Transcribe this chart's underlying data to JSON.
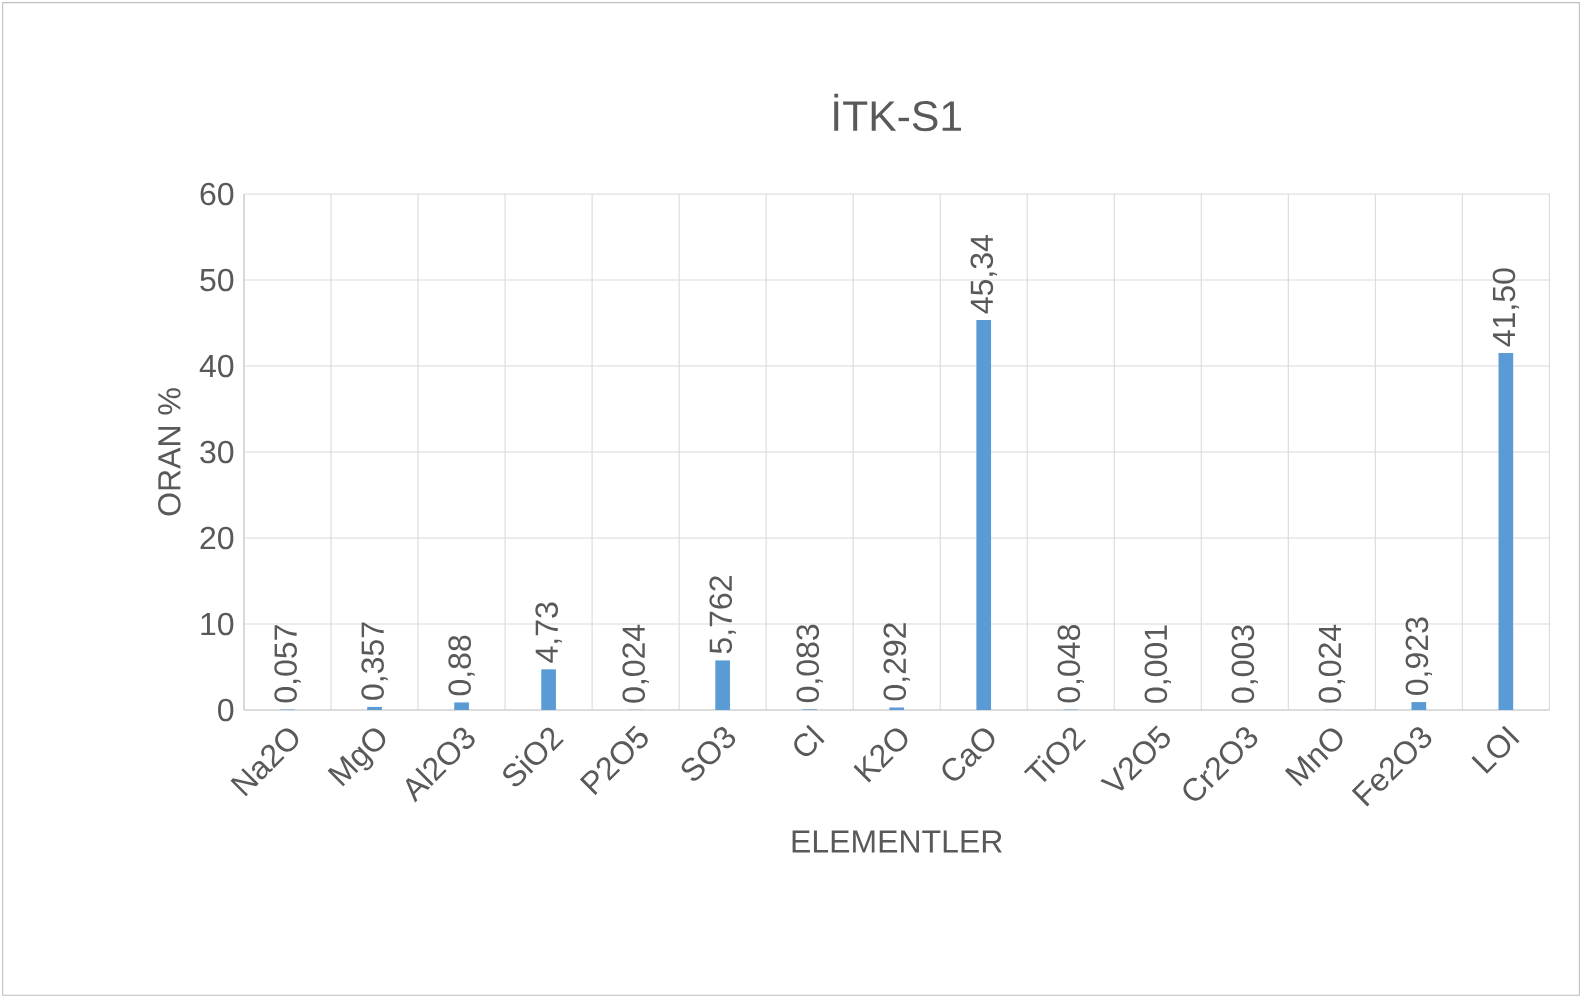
{
  "chart_data": {
    "type": "bar",
    "title": "İTK-S1",
    "xlabel": "ELEMENTLER",
    "ylabel": "ORAN %",
    "categories": [
      "Na2O",
      "MgO",
      "Al2O3",
      "SiO2",
      "P2O5",
      "SO3",
      "Cl",
      "K2O",
      "CaO",
      "TiO2",
      "V2O5",
      "Cr2O3",
      "MnO",
      "Fe2O3",
      "LOI"
    ],
    "values": [
      0.057,
      0.357,
      0.88,
      4.73,
      0.024,
      5.762,
      0.083,
      0.292,
      45.34,
      0.048,
      0.001,
      0.003,
      0.024,
      0.923,
      41.5
    ],
    "value_labels": [
      "0,057",
      "0,357",
      "0,88",
      "4,73",
      "0,024",
      "5,762",
      "0,083",
      "0,292",
      "45,34",
      "0,048",
      "0,001",
      "0,003",
      "0,024",
      "0,923",
      "41,50"
    ],
    "color": "#5b9bd5",
    "ylim": [
      0,
      60
    ],
    "yticks": [
      0,
      10,
      20,
      30,
      40,
      50,
      60
    ],
    "grid": true
  }
}
